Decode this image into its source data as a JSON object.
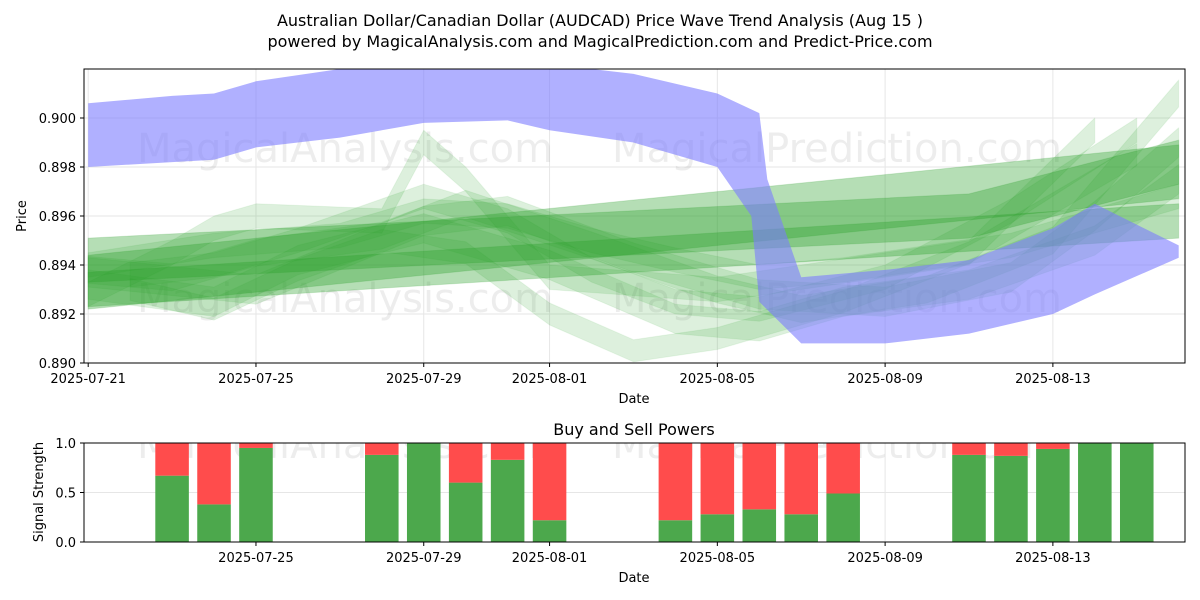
{
  "header": {
    "title_line1": "Australian Dollar/Canadian Dollar (AUDCAD) Price Wave Trend Analysis (Aug 15 )",
    "title_line2": "powered by MagicalAnalysis.com and MagicalPrediction.com and Predict-Price.com"
  },
  "watermarks": [
    "MagicalAnalysis.com",
    "MagicalPrediction.com"
  ],
  "colors": {
    "blue_band": "#7b7bff",
    "green_band": "#2ca02c",
    "buy": "#4ca84c",
    "sell": "#ff4c4c",
    "grid": "#e6e6e6"
  },
  "chart_data": [
    {
      "type": "area",
      "xlabel": "Date",
      "ylabel": "Price",
      "xlim": [
        "2025-07-21",
        "2025-08-16"
      ],
      "ylim": [
        0.89,
        0.902
      ],
      "xticks": [
        "2025-07-21",
        "2025-07-25",
        "2025-07-29",
        "2025-08-01",
        "2025-08-05",
        "2025-08-09",
        "2025-08-13"
      ],
      "yticks": [
        0.89,
        0.892,
        0.894,
        0.896,
        0.898,
        0.9
      ],
      "ytick_labels": [
        "0.890",
        "0.892",
        "0.894",
        "0.896",
        "0.898",
        "0.900"
      ],
      "grid": true,
      "blue_band": {
        "x": [
          "2025-07-21",
          "2025-07-23",
          "2025-07-24",
          "2025-07-25",
          "2025-07-27",
          "2025-07-29",
          "2025-07-31",
          "2025-08-01",
          "2025-08-03",
          "2025-08-05",
          "2025-08-06",
          "2025-08-06",
          "2025-08-07",
          "2025-08-09",
          "2025-08-11",
          "2025-08-13",
          "2025-08-14",
          "2025-08-16"
        ],
        "upper": [
          0.9006,
          0.9009,
          0.901,
          0.9015,
          0.902,
          0.9025,
          0.9025,
          0.9022,
          0.9018,
          0.901,
          0.9002,
          0.8975,
          0.8935,
          0.8938,
          0.8942,
          0.8955,
          0.8965,
          0.8948
        ],
        "lower": [
          0.898,
          0.8982,
          0.8983,
          0.8988,
          0.8992,
          0.8998,
          0.8999,
          0.8995,
          0.899,
          0.898,
          0.896,
          0.8925,
          0.8908,
          0.8908,
          0.8912,
          0.892,
          0.8928,
          0.8943
        ]
      },
      "green_bands": [
        {
          "x": [
            "2025-07-21",
            "2025-08-16"
          ],
          "center": [
            0.8933,
            0.8978
          ],
          "width": 0.0022
        },
        {
          "x": [
            "2025-07-21",
            "2025-08-16"
          ],
          "center": [
            0.893,
            0.8958
          ],
          "width": 0.0014
        },
        {
          "x": [
            "2025-07-21",
            "2025-08-11",
            "2025-08-16"
          ],
          "center": [
            0.8942,
            0.896,
            0.8982
          ],
          "width": 0.0018
        },
        {
          "x": [
            "2025-07-21",
            "2025-07-25",
            "2025-07-29",
            "2025-07-31",
            "2025-08-03",
            "2025-08-06",
            "2025-08-09",
            "2025-08-12",
            "2025-08-14",
            "2025-08-16"
          ],
          "center": [
            0.8937,
            0.893,
            0.8958,
            0.8962,
            0.8943,
            0.8928,
            0.8925,
            0.8935,
            0.896,
            0.899
          ],
          "width": 0.0012
        },
        {
          "x": [
            "2025-07-21",
            "2025-07-23",
            "2025-07-25",
            "2025-07-28",
            "2025-07-30",
            "2025-08-02",
            "2025-08-05",
            "2025-08-07",
            "2025-08-10",
            "2025-08-13",
            "2025-08-16"
          ],
          "center": [
            0.8938,
            0.8935,
            0.8945,
            0.8952,
            0.8965,
            0.8948,
            0.893,
            0.8922,
            0.893,
            0.895,
            0.901
          ],
          "width": 0.0011
        },
        {
          "x": [
            "2025-07-22",
            "2025-07-24",
            "2025-07-26",
            "2025-07-29",
            "2025-07-31",
            "2025-08-02",
            "2025-08-04",
            "2025-08-06",
            "2025-08-09",
            "2025-08-12",
            "2025-08-15"
          ],
          "center": [
            0.8936,
            0.894,
            0.895,
            0.8968,
            0.8958,
            0.8938,
            0.8925,
            0.8922,
            0.8935,
            0.8962,
            0.8995
          ],
          "width": 0.001
        },
        {
          "x": [
            "2025-07-21",
            "2025-07-24",
            "2025-07-26",
            "2025-07-29",
            "2025-08-01",
            "2025-08-04",
            "2025-08-06",
            "2025-08-08",
            "2025-08-11",
            "2025-08-14",
            "2025-08-16"
          ],
          "center": [
            0.8932,
            0.8925,
            0.8942,
            0.8955,
            0.894,
            0.8918,
            0.8915,
            0.8925,
            0.8932,
            0.895,
            0.8975
          ],
          "width": 0.0012
        },
        {
          "x": [
            "2025-07-21",
            "2025-07-23",
            "2025-07-24",
            "2025-07-25",
            "2025-07-28",
            "2025-07-29",
            "2025-07-30",
            "2025-08-01",
            "2025-08-05",
            "2025-08-07",
            "2025-08-11",
            "2025-08-14"
          ],
          "center": [
            0.8928,
            0.8945,
            0.8955,
            0.896,
            0.8958,
            0.899,
            0.8975,
            0.8935,
            0.893,
            0.8935,
            0.8945,
            0.8995
          ],
          "width": 0.001
        },
        {
          "x": [
            "2025-07-22",
            "2025-07-24",
            "2025-07-26",
            "2025-07-28",
            "2025-07-30",
            "2025-08-01",
            "2025-08-03",
            "2025-08-05",
            "2025-08-08",
            "2025-08-11",
            "2025-08-15"
          ],
          "center": [
            0.893,
            0.8922,
            0.8938,
            0.895,
            0.8945,
            0.892,
            0.8905,
            0.891,
            0.8925,
            0.8945,
            0.8985
          ],
          "width": 0.0009
        },
        {
          "x": [
            "2025-07-21",
            "2025-07-24",
            "2025-07-27",
            "2025-07-29",
            "2025-07-31",
            "2025-08-02",
            "2025-08-04",
            "2025-08-06",
            "2025-08-08",
            "2025-08-12",
            "2025-08-16"
          ],
          "center": [
            0.894,
            0.8948,
            0.8952,
            0.8962,
            0.896,
            0.895,
            0.8942,
            0.8935,
            0.8938,
            0.8948,
            0.8968
          ],
          "width": 0.001
        }
      ]
    },
    {
      "type": "bar",
      "title": "Buy and Sell Powers",
      "xlabel": "Date",
      "ylabel": "Signal Strength",
      "ylim": [
        0,
        1.0
      ],
      "yticks": [
        0.0,
        0.5,
        1.0
      ],
      "ytick_labels": [
        "0.0",
        "0.5",
        "1.0"
      ],
      "xticks": [
        "2025-07-25",
        "2025-07-29",
        "2025-08-01",
        "2025-08-05",
        "2025-08-09",
        "2025-08-13"
      ],
      "grid": true,
      "dates": [
        "2025-07-23",
        "2025-07-24",
        "2025-07-25",
        "2025-07-28",
        "2025-07-29",
        "2025-07-30",
        "2025-07-31",
        "2025-08-01",
        "2025-08-04",
        "2025-08-05",
        "2025-08-06",
        "2025-08-07",
        "2025-08-08",
        "2025-08-11",
        "2025-08-12",
        "2025-08-13",
        "2025-08-14",
        "2025-08-15"
      ],
      "series": [
        {
          "name": "Buy",
          "values": [
            0.67,
            0.38,
            0.95,
            0.88,
            1.0,
            0.6,
            0.83,
            0.22,
            0.22,
            0.28,
            0.33,
            0.28,
            0.49,
            0.88,
            0.87,
            0.94,
            1.0,
            1.0
          ]
        },
        {
          "name": "Sell",
          "values": [
            0.33,
            0.62,
            0.05,
            0.12,
            0.0,
            0.4,
            0.17,
            0.78,
            0.78,
            0.72,
            0.67,
            0.72,
            0.51,
            0.12,
            0.13,
            0.06,
            0.0,
            0.0
          ]
        }
      ]
    }
  ]
}
